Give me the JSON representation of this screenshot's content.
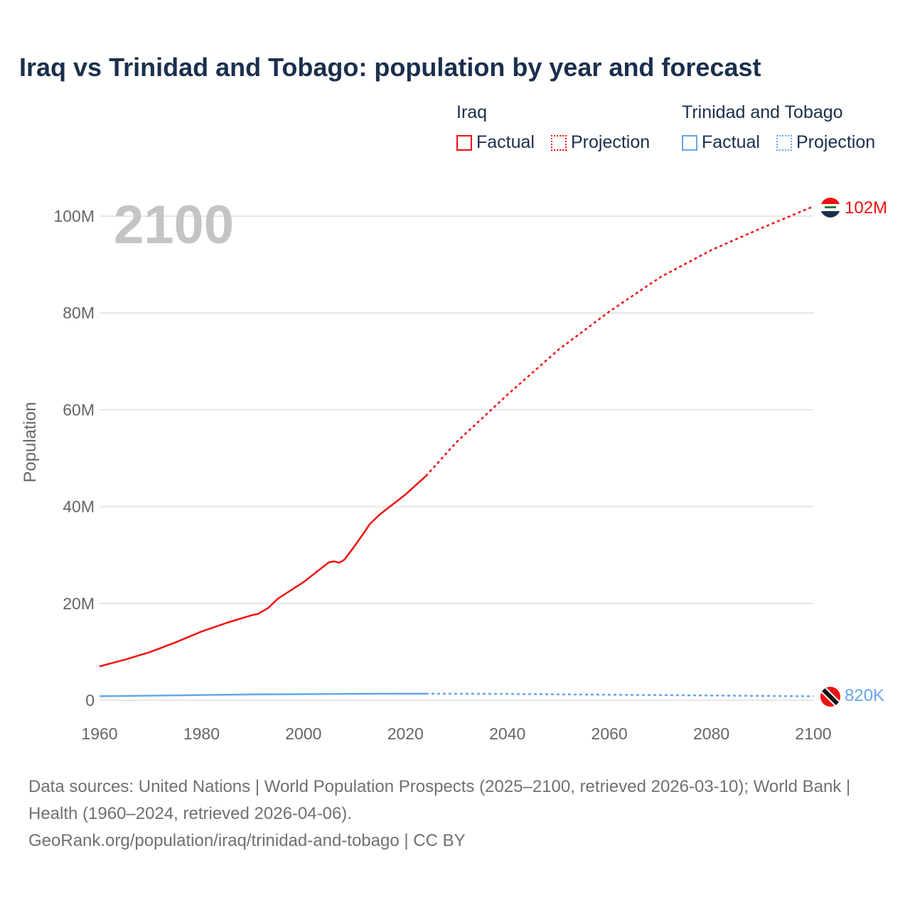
{
  "chart_data": {
    "type": "line",
    "title": "Iraq vs Trinidad and Tobago: population by year and forecast",
    "xlabel": "",
    "ylabel": "Population",
    "xlim": [
      1960,
      2100
    ],
    "ylim": [
      0,
      100000000
    ],
    "x_ticks": [
      "1960",
      "1980",
      "2000",
      "2020",
      "2040",
      "2060",
      "2080",
      "2100"
    ],
    "y_ticks": [
      {
        "v": 0,
        "label": "0"
      },
      {
        "v": 20000000,
        "label": "20M"
      },
      {
        "v": 40000000,
        "label": "40M"
      },
      {
        "v": 60000000,
        "label": "60M"
      },
      {
        "v": 80000000,
        "label": "80M"
      },
      {
        "v": 100000000,
        "label": "100M"
      }
    ],
    "year_label": "2100",
    "grid": true,
    "legend_placement": "top-right",
    "legend": {
      "groups": [
        {
          "name": "Iraq",
          "factual": "Factual",
          "projection": "Projection",
          "color": "#ee1111"
        },
        {
          "name": "Trinidad and Tobago",
          "factual": "Factual",
          "projection": "Projection",
          "color": "#66a6ea"
        }
      ]
    },
    "series": [
      {
        "name": "Iraq",
        "color": "#ee1111",
        "end_label": "102M",
        "factual": {
          "x": [
            1960,
            1965,
            1970,
            1975,
            1980,
            1985,
            1990,
            1991,
            1993,
            1995,
            2000,
            2005,
            2006,
            2007,
            2008,
            2010,
            2012,
            2013,
            2015,
            2020,
            2024
          ],
          "y": [
            7.0,
            8.4,
            10.0,
            12.0,
            14.2,
            16.0,
            17.6,
            17.8,
            19.0,
            21.0,
            24.4,
            28.5,
            28.7,
            28.4,
            29.0,
            31.8,
            34.8,
            36.4,
            38.4,
            42.5,
            46.3
          ]
        },
        "projection": {
          "x": [
            2024,
            2030,
            2040,
            2050,
            2060,
            2070,
            2080,
            2090,
            2100
          ],
          "y": [
            46.3,
            53.3,
            63.1,
            72.4,
            80.3,
            87.4,
            93.0,
            97.6,
            102.0
          ]
        }
      },
      {
        "name": "Trinidad and Tobago",
        "color": "#66a6ea",
        "end_label": "820K",
        "factual": {
          "x": [
            1960,
            1970,
            1980,
            1990,
            2000,
            2010,
            2020,
            2024
          ],
          "y": [
            0.85,
            0.95,
            1.08,
            1.22,
            1.27,
            1.33,
            1.37,
            1.37
          ]
        },
        "projection": {
          "x": [
            2024,
            2040,
            2060,
            2080,
            2100
          ],
          "y": [
            1.37,
            1.3,
            1.15,
            0.98,
            0.82
          ]
        }
      }
    ]
  },
  "footer": {
    "sources": "Data sources: United Nations | World Population Prospects (2025–2100, retrieved 2026-03-10); World Bank | Health (1960–2024, retrieved 2026-04-06).",
    "link": "GeoRank.org/population/iraq/trinidad-and-tobago | CC BY"
  }
}
